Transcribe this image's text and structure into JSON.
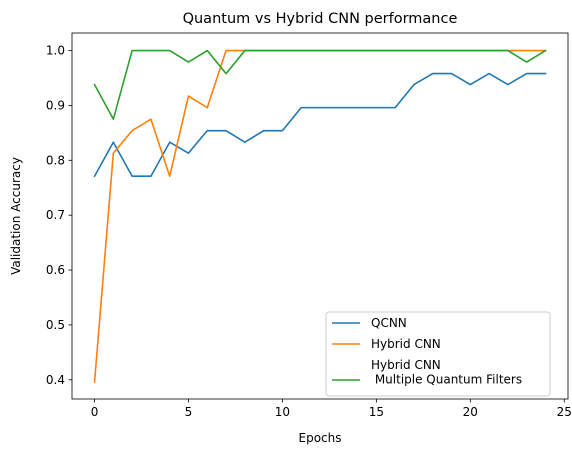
{
  "chart_data": {
    "type": "line",
    "title": "Quantum vs Hybrid CNN performance",
    "xlabel": "Epochs",
    "ylabel": "Validation Accuracy",
    "xlim": [
      -1.2,
      25.2
    ],
    "ylim": [
      0.365,
      1.032
    ],
    "xticks": [
      0,
      5,
      10,
      15,
      20,
      25
    ],
    "yticks": [
      0.4,
      0.5,
      0.6,
      0.7,
      0.8,
      0.9,
      1.0
    ],
    "xtick_labels": [
      "0",
      "5",
      "10",
      "15",
      "20",
      "25"
    ],
    "ytick_labels": [
      "0.4",
      "0.5",
      "0.6",
      "0.7",
      "0.8",
      "0.9",
      "1.0"
    ],
    "grid": false,
    "legend_position": "lower-right",
    "x": [
      0,
      1,
      2,
      3,
      4,
      5,
      6,
      7,
      8,
      9,
      10,
      11,
      12,
      13,
      14,
      15,
      16,
      17,
      18,
      19,
      20,
      21,
      22,
      23,
      24
    ],
    "series": [
      {
        "name": "QCNN",
        "color": "#1f77b4",
        "values": [
          0.771,
          0.833,
          0.771,
          0.771,
          0.833,
          0.813,
          0.854,
          0.854,
          0.833,
          0.854,
          0.854,
          0.896,
          0.896,
          0.896,
          0.896,
          0.896,
          0.896,
          0.938,
          0.958,
          0.958,
          0.938,
          0.958,
          0.938,
          0.958,
          0.958
        ]
      },
      {
        "name": "Hybrid CNN",
        "color": "#ff7f0e",
        "values": [
          0.396,
          0.813,
          0.854,
          0.875,
          0.771,
          0.917,
          0.896,
          1.0,
          1.0,
          1.0,
          1.0,
          1.0,
          1.0,
          1.0,
          1.0,
          1.0,
          1.0,
          1.0,
          1.0,
          1.0,
          1.0,
          1.0,
          1.0,
          1.0,
          1.0
        ]
      },
      {
        "name": "Hybrid CNN\n Multiple Quantum Filters",
        "color": "#2ca02c",
        "values": [
          0.938,
          0.875,
          1.0,
          1.0,
          1.0,
          0.979,
          1.0,
          0.958,
          1.0,
          1.0,
          1.0,
          1.0,
          1.0,
          1.0,
          1.0,
          1.0,
          1.0,
          1.0,
          1.0,
          1.0,
          1.0,
          1.0,
          1.0,
          0.979,
          1.0
        ]
      }
    ]
  }
}
